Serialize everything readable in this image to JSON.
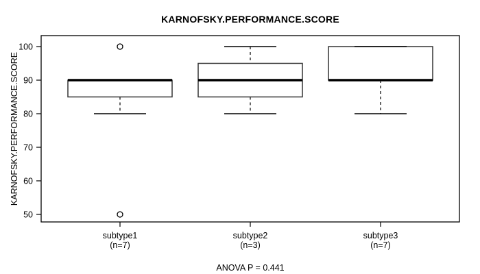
{
  "chart_data": {
    "type": "boxplot",
    "title": "KARNOFSKY.PERFORMANCE.SCORE",
    "ylabel": "KARNOFSKY.PERFORMANCE.SCORE",
    "xlabel": "",
    "ylim": [
      50,
      100
    ],
    "yticks": [
      50,
      60,
      70,
      80,
      90,
      100
    ],
    "grid": false,
    "annotation": "ANOVA P = 0.441",
    "groups": [
      {
        "label": "subtype1",
        "sublabel": "(n=7)",
        "whisker_low": 80,
        "q1": 85,
        "median": 90,
        "q3": 90,
        "whisker_high": 90,
        "outliers": [
          100,
          50
        ]
      },
      {
        "label": "subtype2",
        "sublabel": "(n=3)",
        "whisker_low": 80,
        "q1": 85,
        "median": 90,
        "q3": 95,
        "whisker_high": 100,
        "outliers": []
      },
      {
        "label": "subtype3",
        "sublabel": "(n=7)",
        "whisker_low": 80,
        "q1": 90,
        "median": 90,
        "q3": 100,
        "whisker_high": 100,
        "outliers": []
      }
    ],
    "colors": {
      "line": "#000000",
      "box_border": "#333333",
      "box_fill": "#ffffff",
      "background": "#ffffff"
    }
  }
}
